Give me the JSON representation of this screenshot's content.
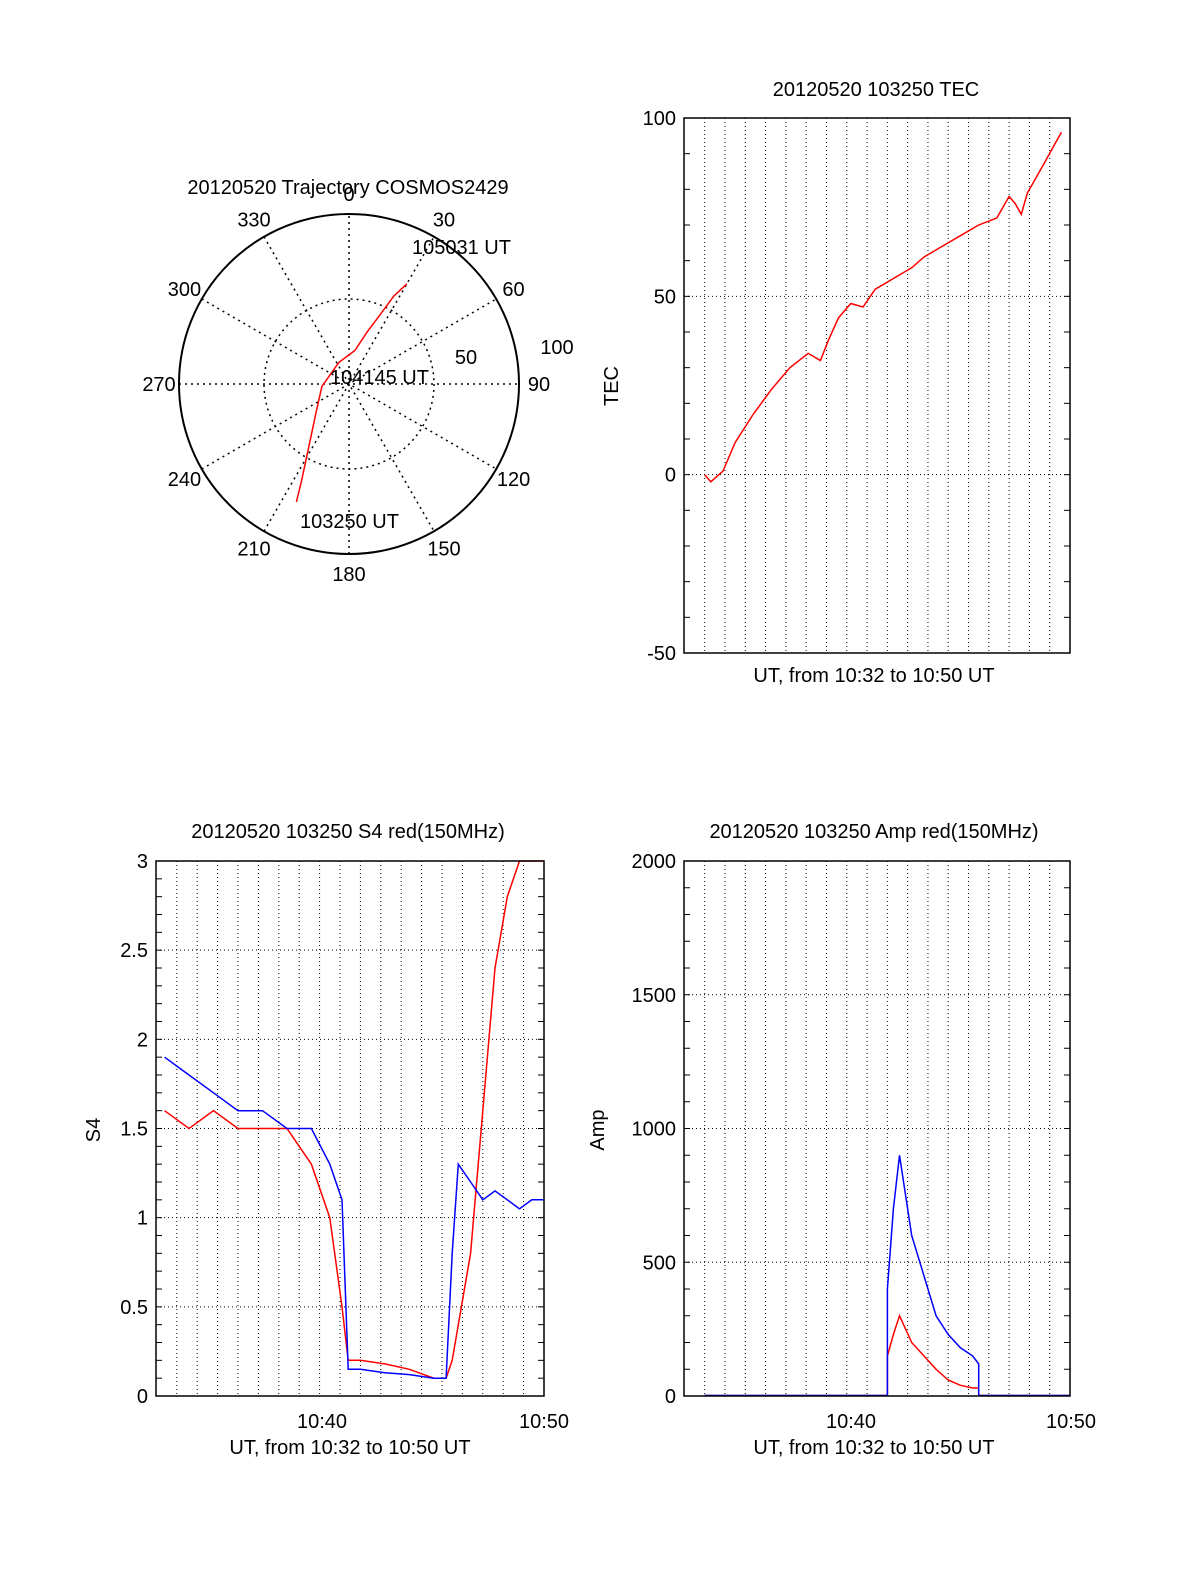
{
  "colors": {
    "red": "#ff0000",
    "blue": "#0000ff",
    "axis": "#000000",
    "grid": "#000000"
  },
  "chart_data": [
    {
      "type": "polar",
      "title": "20120520 Trajectory COSMOS2429",
      "angle_labels": [
        "0",
        "30",
        "60",
        "90",
        "120",
        "150",
        "180",
        "210",
        "240",
        "270",
        "300",
        "330"
      ],
      "radial_labels": [
        "50",
        "100"
      ],
      "annotations": [
        "105031 UT",
        "104145 UT",
        "103250 UT"
      ],
      "trajectory": {
        "color": "red",
        "points": [
          {
            "az": 204,
            "el": 24
          },
          {
            "az": 206,
            "el": 36
          },
          {
            "az": 210,
            "el": 50
          },
          {
            "az": 216,
            "el": 62
          },
          {
            "az": 232,
            "el": 76
          },
          {
            "az": 265,
            "el": 84
          },
          {
            "az": 335,
            "el": 86
          },
          {
            "az": 10,
            "el": 80
          },
          {
            "az": 19,
            "el": 68
          },
          {
            "az": 24,
            "el": 56
          },
          {
            "az": 27,
            "el": 42
          },
          {
            "az": 30,
            "el": 32
          }
        ]
      },
      "rlim": [
        0,
        100
      ]
    },
    {
      "type": "line",
      "title": "20120520 103250 TEC",
      "xlabel": "UT, from 10:32 to 10:50 UT",
      "ylabel": "TEC",
      "xlim": [
        10.533,
        10.85
      ],
      "ylim": [
        -50,
        100
      ],
      "yticks": [
        -50,
        0,
        50,
        100
      ],
      "xtick_labels": [],
      "grid": true,
      "series": [
        {
          "color": "red",
          "x": [
            10.55,
            10.555,
            10.565,
            10.575,
            10.59,
            10.605,
            10.62,
            10.635,
            10.645,
            10.652,
            10.66,
            10.67,
            10.68,
            10.69,
            10.7,
            10.71,
            10.72,
            10.73,
            10.745,
            10.76,
            10.775,
            10.79,
            10.8,
            10.805,
            10.81,
            10.815,
            10.82,
            10.83,
            10.838,
            10.843
          ],
          "y": [
            0,
            -2,
            1,
            9,
            17,
            24,
            30,
            34,
            32,
            38,
            44,
            48,
            47,
            52,
            54,
            56,
            58,
            61,
            64,
            67,
            70,
            72,
            78,
            76,
            73,
            79,
            82,
            88,
            93,
            96
          ]
        }
      ]
    },
    {
      "type": "line",
      "title": "20120520 103250 S4 red(150MHz)",
      "xlabel": "UT, from 10:32 to 10:50 UT",
      "ylabel": "S4",
      "xlim": [
        10.533,
        10.85
      ],
      "ylim": [
        0,
        3
      ],
      "yticks": [
        0,
        0.5,
        1,
        1.5,
        2,
        2.5,
        3
      ],
      "ytick_labels": [
        "0",
        "0.5",
        "1",
        "1.5",
        "2",
        "2.5",
        "3"
      ],
      "xtick_labels": [
        "10:40",
        "10:50"
      ],
      "grid": true,
      "series": [
        {
          "color": "red",
          "x": [
            10.54,
            10.56,
            10.58,
            10.6,
            10.62,
            10.64,
            10.66,
            10.675,
            10.685,
            10.69,
            10.7,
            10.72,
            10.74,
            10.76,
            10.77,
            10.775,
            10.78,
            10.79,
            10.8,
            10.81,
            10.82,
            10.83,
            10.84,
            10.85
          ],
          "y": [
            1.6,
            1.5,
            1.6,
            1.5,
            1.5,
            1.5,
            1.3,
            1.0,
            0.5,
            0.2,
            0.2,
            0.18,
            0.15,
            0.1,
            0.1,
            0.2,
            0.4,
            0.8,
            1.6,
            2.4,
            2.8,
            3.0,
            3.0,
            3.0
          ]
        },
        {
          "color": "blue",
          "x": [
            10.54,
            10.56,
            10.58,
            10.6,
            10.62,
            10.64,
            10.66,
            10.675,
            10.685,
            10.69,
            10.7,
            10.72,
            10.74,
            10.76,
            10.77,
            10.775,
            10.78,
            10.79,
            10.8,
            10.81,
            10.82,
            10.83,
            10.84,
            10.85
          ],
          "y": [
            1.9,
            1.8,
            1.7,
            1.6,
            1.6,
            1.5,
            1.5,
            1.3,
            1.1,
            0.15,
            0.15,
            0.13,
            0.12,
            0.1,
            0.1,
            0.8,
            1.3,
            1.2,
            1.1,
            1.15,
            1.1,
            1.05,
            1.1,
            1.1
          ]
        }
      ]
    },
    {
      "type": "line",
      "title": "20120520 103250 Amp red(150MHz)",
      "xlabel": "UT, from 10:32 to 10:50 UT",
      "ylabel": "Amp",
      "xlim": [
        10.533,
        10.85
      ],
      "ylim": [
        0,
        2000
      ],
      "yticks": [
        0,
        500,
        1000,
        1500,
        2000
      ],
      "xtick_labels": [
        "10:40",
        "10:50"
      ],
      "grid": true,
      "series": [
        {
          "color": "red",
          "x": [
            10.55,
            10.7,
            10.7,
            10.705,
            10.71,
            10.715,
            10.72,
            10.73,
            10.74,
            10.75,
            10.76,
            10.77,
            10.775,
            10.775,
            10.85
          ],
          "y": [
            2,
            2,
            150,
            230,
            300,
            250,
            200,
            150,
            100,
            60,
            40,
            30,
            30,
            2,
            2
          ]
        },
        {
          "color": "blue",
          "x": [
            10.55,
            10.7,
            10.7,
            10.705,
            10.71,
            10.715,
            10.72,
            10.73,
            10.74,
            10.75,
            10.76,
            10.77,
            10.775,
            10.775,
            10.85
          ],
          "y": [
            2,
            2,
            400,
            700,
            900,
            750,
            600,
            450,
            300,
            230,
            180,
            150,
            120,
            2,
            2
          ]
        }
      ]
    }
  ]
}
